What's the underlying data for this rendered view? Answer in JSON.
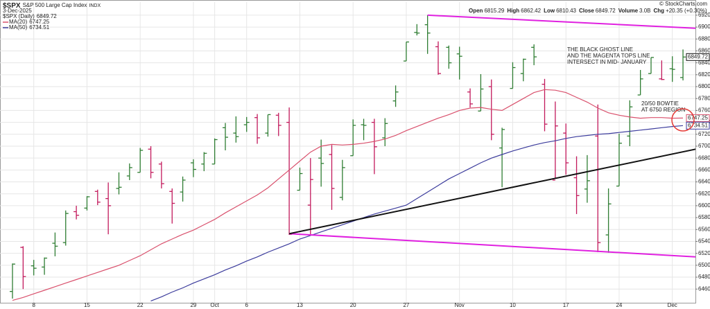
{
  "chart_data": {
    "type": "ohlc",
    "symbol": "$SPX",
    "title": "S&P 500 Large Cap Index",
    "exchange": "INDX",
    "date": "3-Dec-2025",
    "copyright": "© StockCharts.com",
    "quote_labels": [
      "Open",
      "High",
      "Low",
      "Close",
      "Volume",
      "Chg"
    ],
    "volume": "3.0B",
    "change": "+20.35 (+0.30%)",
    "categories": [
      null,
      null,
      "8",
      null,
      null,
      null,
      null,
      "15",
      null,
      null,
      null,
      null,
      "22",
      null,
      null,
      null,
      null,
      "29",
      null,
      "Oct",
      null,
      null,
      "6",
      null,
      null,
      null,
      null,
      "13",
      null,
      null,
      null,
      null,
      "20",
      null,
      null,
      null,
      null,
      "27",
      null,
      null,
      null,
      null,
      "Nov",
      null,
      null,
      null,
      null,
      "10",
      null,
      null,
      null,
      null,
      "17",
      null,
      null,
      null,
      null,
      "24",
      null,
      null,
      null,
      null,
      "Dec",
      null,
      null
    ],
    "ohlc": {
      "name": "$SPX (Daily)",
      "up_color": "#2e7d32",
      "down_color": "#c2185b",
      "open": [
        6456,
        6530,
        6499,
        6497,
        6537,
        6538,
        6590,
        6596,
        6624,
        6612,
        6629,
        6650,
        6656,
        6695,
        6670,
        6624,
        6623,
        6672,
        6670,
        6670,
        6731,
        6722,
        6736,
        6748,
        6722,
        6752,
        6740,
        6626,
        6601,
        6680,
        6686,
        6614,
        6684,
        6736,
        6740,
        6714,
        6776,
        6843,
        6891,
        6904,
        6867,
        6866,
        6855,
        6791,
        6759,
        6800,
        6697,
        6797,
        6822,
        6866,
        6804,
        6643,
        6722,
        6647,
        6628,
        6717,
        6551,
        6633,
        6717,
        6786,
        6822,
        6813,
        6830,
        6815.29
      ],
      "high": [
        6503,
        6532,
        6509,
        6513,
        6555,
        6592,
        6600,
        6616,
        6627,
        6639,
        6656,
        6671,
        6697,
        6700,
        6674,
        6629,
        6649,
        6678,
        6690,
        6713,
        6739,
        6750,
        6749,
        6754,
        6753,
        6756,
        6765,
        6664,
        6680,
        6711,
        6702,
        6677,
        6745,
        6746,
        6746,
        6747,
        6802,
        6875,
        6905,
        6920,
        6876,
        6869,
        6867,
        6797,
        6821,
        6812,
        6731,
        6841,
        6847,
        6871,
        6813,
        6775,
        6738,
        6683,
        6685,
        6770,
        6629,
        6721,
        6777,
        6828,
        6849,
        6844,
        6851,
        6862.42
      ],
      "low": [
        6444,
        6460,
        6483,
        6484,
        6515,
        6533,
        6577,
        6592,
        6601,
        6552,
        6619,
        6643,
        6656,
        6646,
        6629,
        6570,
        6607,
        6648,
        6658,
        6670,
        6693,
        6706,
        6724,
        6704,
        6716,
        6717,
        6551,
        6626,
        6551,
        6632,
        6593,
        6609,
        6684,
        6710,
        6653,
        6700,
        6766,
        6843,
        6886,
        6855,
        6820,
        6830,
        6812,
        6765,
        6759,
        6710,
        6631,
        6797,
        6809,
        6836,
        6725,
        6647,
        6652,
        6586,
        6605,
        6522,
        6521,
        6633,
        6700,
        6786,
        6822,
        6811,
        6808,
        6810.43
      ],
      "close": [
        6502,
        6481,
        6495,
        6512,
        6532,
        6587,
        6584,
        6615,
        6606,
        6600,
        6631,
        6664,
        6693,
        6656,
        6637,
        6604,
        6643,
        6661,
        6688,
        6711,
        6715,
        6716,
        6740,
        6714,
        6753,
        6735,
        6552,
        6654,
        6644,
        6671,
        6629,
        6664,
        6735,
        6735,
        6699,
        6738,
        6791,
        6875,
        6890,
        6890,
        6822,
        6840,
        6851,
        6771,
        6796,
        6720,
        6728,
        6832,
        6846,
        6850,
        6737,
        6734,
        6672,
        6617,
        6642,
        6538,
        6603,
        6705,
        6766,
        6813,
        6849,
        6812,
        6829,
        6849.72
      ]
    },
    "lines": [
      {
        "name": "MA(50)",
        "color": "#3b3b9c",
        "values": [
          null,
          null,
          null,
          null,
          null,
          null,
          null,
          null,
          null,
          null,
          null,
          null,
          null,
          6440,
          6447,
          6455,
          6462,
          6470,
          6477,
          6484,
          6492,
          6499,
          6507,
          6514,
          6522,
          6529,
          6536,
          6544,
          6550,
          6556,
          6562,
          6568,
          6574,
          6580,
          6586,
          6591,
          6596,
          6601,
          6612,
          6623,
          6634,
          6645,
          6654,
          6663,
          6672,
          6680,
          6686,
          6692,
          6697,
          6702,
          6706,
          6709,
          6713,
          6716,
          6718,
          6720,
          6721,
          6723,
          6725,
          6727,
          6729,
          6731,
          6733,
          6734.51
        ]
      },
      {
        "name": "MA(20)",
        "color": "#d9506c",
        "values": [
          6441,
          6446,
          6452,
          6458,
          6464,
          6470,
          6476,
          6482,
          6488,
          6494,
          6500,
          6508,
          6516,
          6526,
          6536,
          6544,
          6552,
          6559,
          6568,
          6577,
          6588,
          6598,
          6608,
          6618,
          6630,
          6645,
          6660,
          6675,
          6690,
          6700,
          6703,
          6702,
          6703,
          6705,
          6708,
          6712,
          6718,
          6726,
          6733,
          6740,
          6747,
          6753,
          6760,
          6764,
          6765,
          6762,
          6760,
          6770,
          6780,
          6790,
          6795,
          6794,
          6790,
          6782,
          6774,
          6764,
          6756,
          6752,
          6749,
          6747,
          6748,
          6748,
          6747,
          6747.25
        ]
      }
    ],
    "trendlines": [
      {
        "color": "#e020e0",
        "x": [
          39,
          64.2
        ],
        "values": [
          6920,
          6898
        ]
      },
      {
        "color": "#e020e0",
        "x": [
          26,
          64.2
        ],
        "values": [
          6553,
          6514
        ]
      },
      {
        "color": "#111111",
        "x": [
          26,
          64.2
        ],
        "values": [
          6553,
          6695
        ]
      }
    ],
    "annotations": [
      {
        "lines": [
          "THE BLACK GHOST LINE",
          "AND THE MAGENTA TOPS LINE",
          "INTERSECT IN  MID- JANUARY"
        ],
        "color": "#111111"
      },
      {
        "lines": [
          "20/50 BOWTIE",
          "AT 6750 REGION"
        ],
        "color": "#e53935"
      }
    ],
    "ylim": [
      6437,
      6942
    ],
    "yticks": [
      6460,
      6480,
      6500,
      6520,
      6540,
      6560,
      6580,
      6600,
      6620,
      6640,
      6660,
      6680,
      6700,
      6720,
      6740,
      6760,
      6780,
      6800,
      6820,
      6840,
      6860,
      6880,
      6900,
      6920
    ],
    "grid": true
  }
}
